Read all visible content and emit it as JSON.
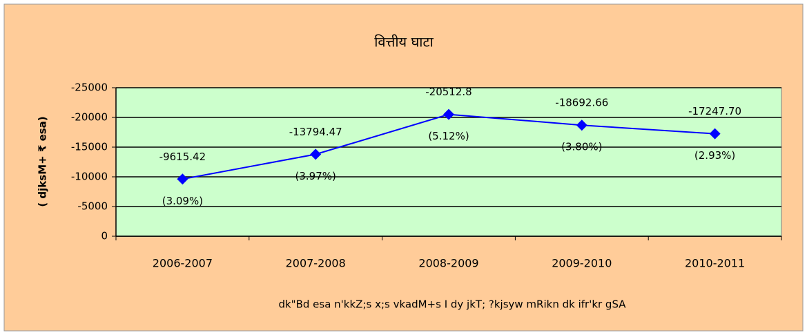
{
  "chart_data": {
    "type": "line",
    "title": "वित्तीय घाटा",
    "ylabel": "( djksM+ ₹ esa)",
    "xlabel": "dk\"Bd esa n'kkZ;s x;s vkadM+s I dy jkT; ?kjsyw mRikn dk ifr'kr gSA",
    "categories": [
      "2006-2007",
      "2007-2008",
      "2008-2009",
      "2009-2010",
      "2010-2011"
    ],
    "series": [
      {
        "name": "वित्तीय घाटा",
        "color": "#0000ff",
        "values": [
          -9615.42,
          -13794.47,
          -20512.8,
          -18692.66,
          -17247.7
        ],
        "value_labels": [
          "-9615.42",
          "-13794.47",
          "-20512.8",
          "-18692.66",
          "-17247.70"
        ]
      }
    ],
    "annotations": [
      "(3.09%)",
      "(3.97%)",
      "(5.12%)",
      "(3.80%)",
      "(2.93%)"
    ],
    "ylim": [
      0,
      -25000
    ],
    "yticks": [
      0,
      -5000,
      -10000,
      -15000,
      -20000,
      -25000
    ],
    "grid": true
  }
}
